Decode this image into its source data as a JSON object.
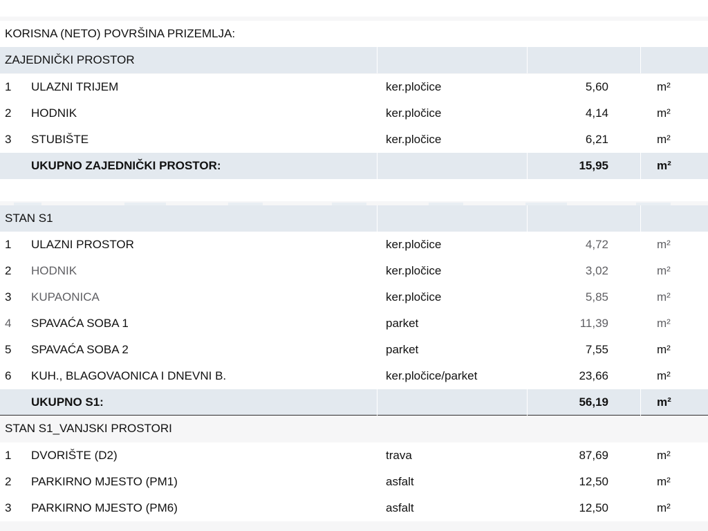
{
  "heading": "KORISNA (NETO) POVRŠINA PRIZEMLJA:",
  "unit": "m²",
  "common": {
    "title": "ZAJEDNIČKI PROSTOR",
    "rows": [
      {
        "num": "1",
        "name": "ULAZNI TRIJEM",
        "material": "ker.pločice",
        "area": "5,60",
        "unit": "m²"
      },
      {
        "num": "2",
        "name": "HODNIK",
        "material": "ker.pločice",
        "area": "4,14",
        "unit": "m²"
      },
      {
        "num": "3",
        "name": "STUBIŠTE",
        "material": "ker.pločice",
        "area": "6,21",
        "unit": "m²"
      }
    ],
    "total_label": "UKUPNO ZAJEDNIČKI PROSTOR:",
    "total_area": "15,95",
    "total_unit": "m²"
  },
  "s1": {
    "title": "STAN S1",
    "rows": [
      {
        "num": "1",
        "name": "ULAZNI PROSTOR",
        "material": "ker.pločice",
        "area": "4,72",
        "unit": "m²"
      },
      {
        "num": "2",
        "name": "HODNIK",
        "material": "ker.pločice",
        "area": "3,02",
        "unit": "m²"
      },
      {
        "num": "3",
        "name": "KUPAONICA",
        "material": "ker.pločice",
        "area": "5,85",
        "unit": "m²"
      },
      {
        "num": "4",
        "name": "SPAVAĆA SOBA 1",
        "material": "parket",
        "area": "11,39",
        "unit": "m²"
      },
      {
        "num": "5",
        "name": "SPAVAĆA SOBA 2",
        "material": "parket",
        "area": "7,55",
        "unit": "m²"
      },
      {
        "num": "6",
        "name": "KUH., BLAGOVAONICA I DNEVNI B.",
        "material": "ker.pločice/parket",
        "area": "23,66",
        "unit": "m²"
      }
    ],
    "total_label": "UKUPNO S1:",
    "total_area": "56,19",
    "total_unit": "m²"
  },
  "s1_outdoor": {
    "title": "STAN S1_VANJSKI PROSTORI",
    "rows": [
      {
        "num": "1",
        "name": "DVORIŠTE (D2)",
        "material": "trava",
        "area": "87,69",
        "unit": "m²"
      },
      {
        "num": "2",
        "name": "PARKIRNO MJESTO (PM1)",
        "material": "asfalt",
        "area": "12,50",
        "unit": "m²"
      },
      {
        "num": "3",
        "name": "PARKIRNO MJESTO (PM6)",
        "material": "asfalt",
        "area": "12,50",
        "unit": "m²"
      }
    ]
  }
}
